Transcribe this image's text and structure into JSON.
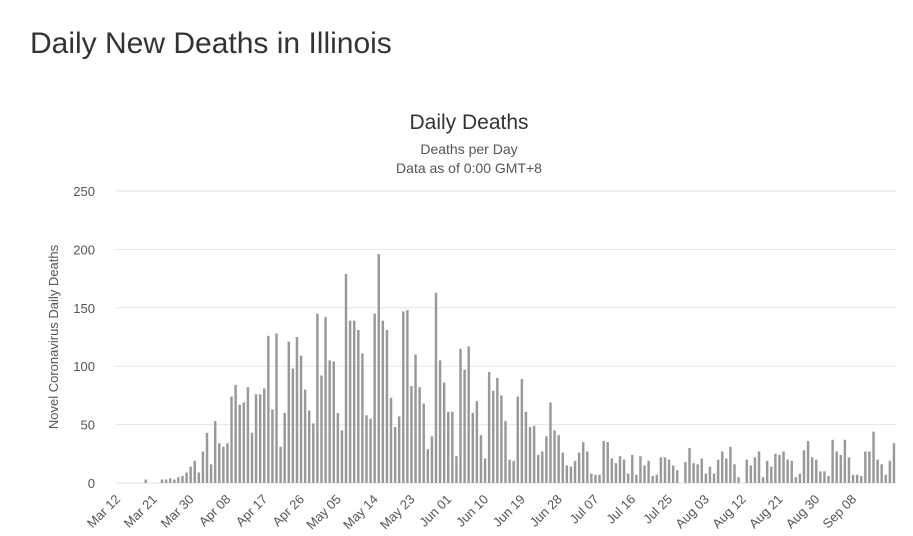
{
  "page": {
    "heading": "Daily New Deaths in Illinois"
  },
  "chart_data": {
    "type": "bar",
    "title": "Daily Deaths",
    "subtitle": [
      "Deaths per Day",
      "Data as of 0:00 GMT+8"
    ],
    "xlabel": "",
    "ylabel": "Novel Coronavirus Daily Deaths",
    "ylim": [
      0,
      250
    ],
    "yticks": [
      0,
      50,
      100,
      150,
      200,
      250
    ],
    "grid": true,
    "legend": "none",
    "bar_color": "#999999",
    "start_date": "Mar 12",
    "xtick_labels": [
      "Mar 12",
      "Mar 21",
      "Mar 30",
      "Apr 08",
      "Apr 17",
      "Apr 26",
      "May 05",
      "May 14",
      "May 23",
      "Jun 01",
      "Jun 10",
      "Jun 19",
      "Jun 28",
      "Jul 07",
      "Jul 16",
      "Jul 25",
      "Aug 03",
      "Aug 12",
      "Aug 21",
      "Aug 30",
      "Sep 08"
    ],
    "xtick_step_days": 9,
    "values": [
      0,
      0,
      0,
      0,
      0,
      0,
      0,
      3,
      0,
      0,
      0,
      3,
      3,
      4,
      3,
      5,
      6,
      9,
      14,
      19,
      9,
      27,
      43,
      16,
      53,
      34,
      31,
      34,
      74,
      84,
      67,
      69,
      82,
      43,
      76,
      76,
      81,
      126,
      63,
      128,
      31,
      60,
      121,
      98,
      125,
      109,
      80,
      62,
      51,
      145,
      92,
      142,
      105,
      104,
      60,
      45,
      179,
      139,
      139,
      131,
      111,
      58,
      55,
      145,
      196,
      139,
      131,
      73,
      48,
      57,
      147,
      148,
      83,
      110,
      82,
      68,
      29,
      40,
      163,
      105,
      86,
      61,
      61,
      23,
      115,
      97,
      117,
      60,
      70,
      41,
      21,
      95,
      79,
      90,
      75,
      53,
      20,
      19,
      74,
      89,
      61,
      48,
      49,
      24,
      27,
      40,
      69,
      45,
      41,
      26,
      15,
      14,
      19,
      26,
      35,
      27,
      8,
      7,
      7,
      36,
      35,
      21,
      17,
      23,
      20,
      8,
      24,
      7,
      23,
      15,
      19,
      6,
      7,
      22,
      22,
      20,
      15,
      11,
      0,
      18,
      30,
      17,
      16,
      21,
      8,
      14,
      8,
      20,
      27,
      21,
      31,
      16,
      5,
      0,
      20,
      15,
      22,
      27,
      5,
      19,
      14,
      25,
      24,
      27,
      20,
      19,
      5,
      8,
      28,
      36,
      22,
      20,
      10,
      10,
      6,
      37,
      27,
      24,
      37,
      22,
      7,
      7,
      6,
      27,
      27,
      44,
      20,
      16,
      7,
      19,
      34
    ]
  }
}
